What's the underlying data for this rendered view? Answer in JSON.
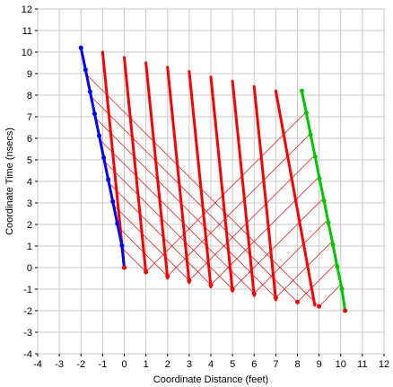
{
  "chart_data": {
    "type": "line",
    "title": "",
    "xlabel": "Coordinate Distance (feet)",
    "ylabel": "Coordinate Time (nsecs)",
    "xlim": [
      -4,
      12
    ],
    "ylim": [
      -4,
      12
    ],
    "x_ticks": [
      -4,
      -3,
      -2,
      -1,
      0,
      1,
      2,
      3,
      4,
      5,
      6,
      7,
      8,
      9,
      10,
      11,
      12
    ],
    "y_ticks": [
      -4,
      -3,
      -2,
      -1,
      0,
      1,
      2,
      3,
      4,
      5,
      6,
      7,
      8,
      9,
      10,
      11,
      12
    ],
    "grid": true,
    "colors": {
      "worldline_start": "#0000ff",
      "worldlines": "#ff0000",
      "worldline_end": "#00c800",
      "light_rays": "#ff0000",
      "grid": "#c8c8c8"
    },
    "worldline_start": {
      "x": [
        -2.0,
        -1.79,
        -1.58,
        -1.37,
        -1.16,
        -0.95,
        -0.74,
        -0.53,
        -0.32,
        -0.11,
        0.0
      ],
      "y": [
        10.2,
        9.18,
        8.16,
        7.14,
        6.12,
        5.1,
        4.08,
        3.06,
        2.04,
        1.02,
        0.0
      ]
    },
    "worldlines_middle": [
      {
        "x": [
          -1.0,
          0.0
        ],
        "y": [
          10.0,
          0.0
        ]
      },
      {
        "x": [
          0.0,
          1.0
        ],
        "y": [
          9.75,
          -0.25
        ]
      },
      {
        "x": [
          1.0,
          2.0
        ],
        "y": [
          9.5,
          -0.5
        ]
      },
      {
        "x": [
          2.0,
          3.0
        ],
        "y": [
          9.3,
          -0.7
        ]
      },
      {
        "x": [
          3.0,
          4.0
        ],
        "y": [
          9.1,
          -0.9
        ]
      },
      {
        "x": [
          4.0,
          5.0
        ],
        "y": [
          8.85,
          -1.1
        ]
      },
      {
        "x": [
          5.0,
          6.0
        ],
        "y": [
          8.65,
          -1.3
        ]
      },
      {
        "x": [
          6.0,
          7.0
        ],
        "y": [
          8.4,
          -1.5
        ]
      },
      {
        "x": [
          7.0,
          8.8
        ],
        "y": [
          8.2,
          -1.75
        ]
      }
    ],
    "worldline_end": {
      "x": [
        8.2,
        8.41,
        8.61,
        8.82,
        9.02,
        9.23,
        9.43,
        9.64,
        9.84,
        10.05,
        10.2
      ],
      "y": [
        8.2,
        7.18,
        6.16,
        5.14,
        4.12,
        3.1,
        2.08,
        1.06,
        0.04,
        -0.98,
        -2.0
      ]
    },
    "light_ray_bottom_points": {
      "x": [
        0.0,
        1.0,
        2.0,
        3.0,
        4.0,
        5.0,
        6.0,
        7.0,
        8.0,
        9.0,
        10.2
      ],
      "y": [
        0.0,
        -0.2,
        -0.4,
        -0.6,
        -0.8,
        -1.0,
        -1.2,
        -1.4,
        -1.6,
        -1.8,
        -2.0
      ]
    }
  }
}
